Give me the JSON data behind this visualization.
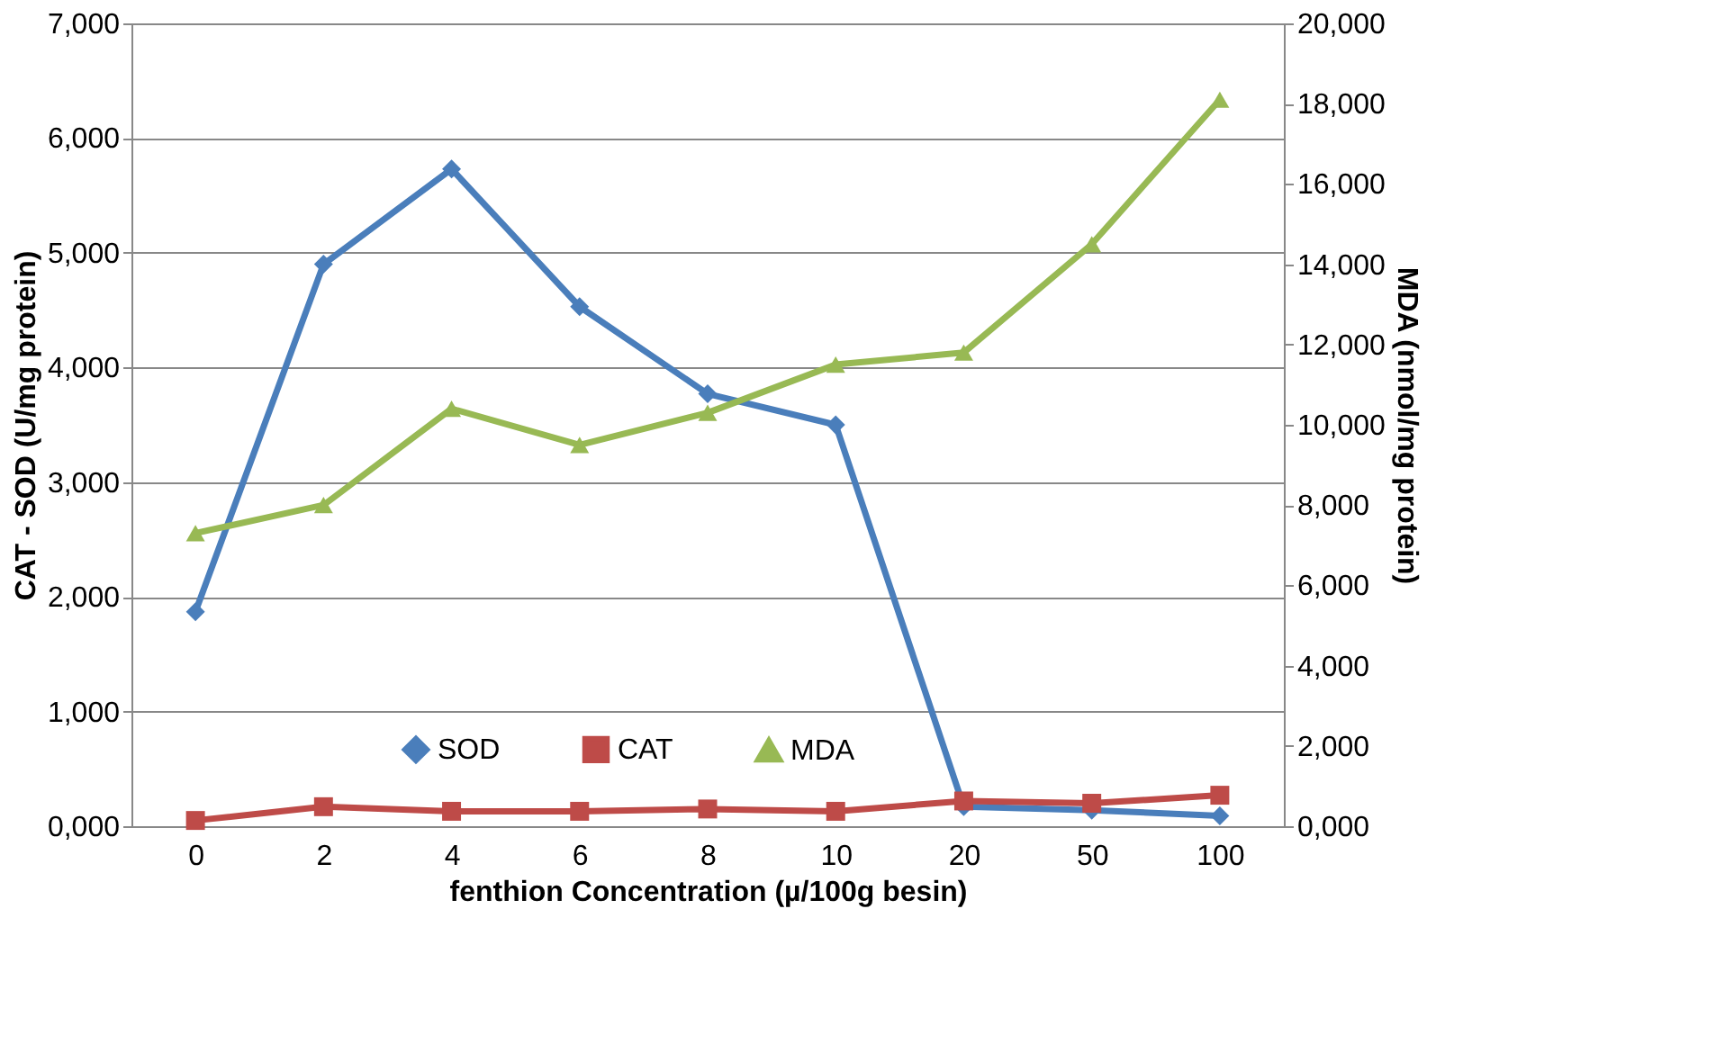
{
  "chart_data": {
    "type": "line",
    "xlabel": "fenthion Concentration (µ/100g besin)",
    "ylabel": "CAT - SOD (U/mg protein)",
    "y2label": "MDA (nmol/mg protein)",
    "categories": [
      "0",
      "2",
      "4",
      "6",
      "8",
      "10",
      "20",
      "50",
      "100"
    ],
    "ylim": [
      0,
      7
    ],
    "yticks": [
      {
        "value": 0,
        "label": "0,000"
      },
      {
        "value": 1,
        "label": "1,000"
      },
      {
        "value": 2,
        "label": "2,000"
      },
      {
        "value": 3,
        "label": "3,000"
      },
      {
        "value": 4,
        "label": "4,000"
      },
      {
        "value": 5,
        "label": "5,000"
      },
      {
        "value": 6,
        "label": "6,000"
      },
      {
        "value": 7,
        "label": "7,000"
      }
    ],
    "y2lim": [
      0,
      20
    ],
    "y2ticks": [
      {
        "value": 0,
        "label": "0,000"
      },
      {
        "value": 2,
        "label": "2,000"
      },
      {
        "value": 4,
        "label": "4,000"
      },
      {
        "value": 6,
        "label": "6,000"
      },
      {
        "value": 8,
        "label": "8,000"
      },
      {
        "value": 10,
        "label": "10,000"
      },
      {
        "value": 12,
        "label": "12,000"
      },
      {
        "value": 14,
        "label": "14,000"
      },
      {
        "value": 16,
        "label": "16,000"
      },
      {
        "value": 18,
        "label": "18,000"
      },
      {
        "value": 20,
        "label": "20,000"
      }
    ],
    "grid": "y",
    "legend": "bottom",
    "line_style": "solid",
    "series": [
      {
        "name": "SOD",
        "color": "#4a7ebb",
        "marker": "diamond",
        "values": [
          1.87,
          4.9,
          5.73,
          4.53,
          3.77,
          3.5,
          0.17,
          0.14,
          0.09
        ]
      },
      {
        "name": "CAT",
        "color": "#be4b48",
        "marker": "square",
        "values": [
          0.05,
          0.17,
          0.13,
          0.13,
          0.15,
          0.13,
          0.22,
          0.2,
          0.27
        ]
      },
      {
        "name": "MDA",
        "color": "#98b954",
        "marker": "triangle",
        "axis": "y2",
        "values": [
          7.3,
          8.0,
          10.4,
          9.5,
          10.3,
          11.5,
          11.8,
          14.5,
          18.1
        ]
      }
    ]
  }
}
